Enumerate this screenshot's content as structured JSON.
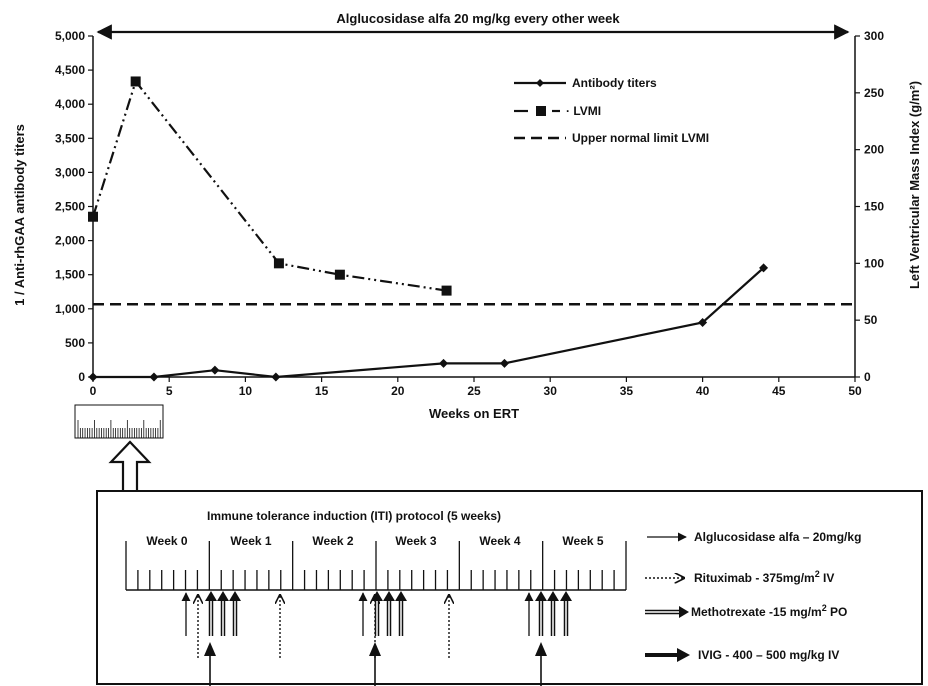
{
  "chart_data": {
    "type": "line",
    "title": "Alglucosidase alfa 20 mg/kg every other week",
    "xlabel": "Weeks on ERT",
    "ylabel_left": "1 / Anti-rhGAA antibody titers",
    "ylabel_right": "Left Ventricular Mass Index (g/m²)",
    "xlim": [
      0,
      50
    ],
    "ylim_left": [
      0,
      5000
    ],
    "ylim_right": [
      0,
      300
    ],
    "x_ticks": [
      "0",
      "5",
      "10",
      "15",
      "20",
      "25",
      "30",
      "35",
      "40",
      "45",
      "50"
    ],
    "y_left_ticks": [
      "0",
      "500",
      "1,000",
      "1,500",
      "2,000",
      "2,500",
      "3,000",
      "3,500",
      "4,000",
      "4,500",
      "5,000"
    ],
    "y_right_ticks": [
      "0",
      "50",
      "100",
      "150",
      "200",
      "250",
      "300"
    ],
    "grid": false,
    "legend_position": "top-right",
    "series": [
      {
        "name": "Antibody titers",
        "axis": "left",
        "marker": "diamond",
        "line": "solid",
        "x": [
          0,
          4,
          8,
          12,
          23,
          27,
          40,
          44
        ],
        "y": [
          0,
          0,
          100,
          0,
          200,
          200,
          800,
          1600
        ]
      },
      {
        "name": "LVMI",
        "axis": "right",
        "marker": "square",
        "line": "dash-dot-dot",
        "x": [
          0,
          2.8,
          12.2,
          16.2,
          23.2
        ],
        "y": [
          141,
          260,
          100,
          90,
          76
        ]
      },
      {
        "name": "Upper normal limit LVMI",
        "axis": "right",
        "line": "dashed",
        "y_const": 64
      }
    ]
  },
  "iti_panel": {
    "title": "Immune tolerance induction (ITI) protocol (5 weeks)",
    "weeks": [
      "Week 0",
      "Week 1",
      "Week 2",
      "Week 3",
      "Week 4",
      "Week 5"
    ],
    "legend": [
      {
        "label": "Alglucosidase alfa – 20mg/kg",
        "style": "thin-arrow"
      },
      {
        "label": "Rituximab - 375mg/m² IV",
        "style": "dotted-arrow"
      },
      {
        "label": "Methotrexate -15 mg/m² PO",
        "style": "double-arrow"
      },
      {
        "label": "IVIG - 400 – 500 mg/kg IV",
        "style": "bold-arrow"
      }
    ]
  }
}
